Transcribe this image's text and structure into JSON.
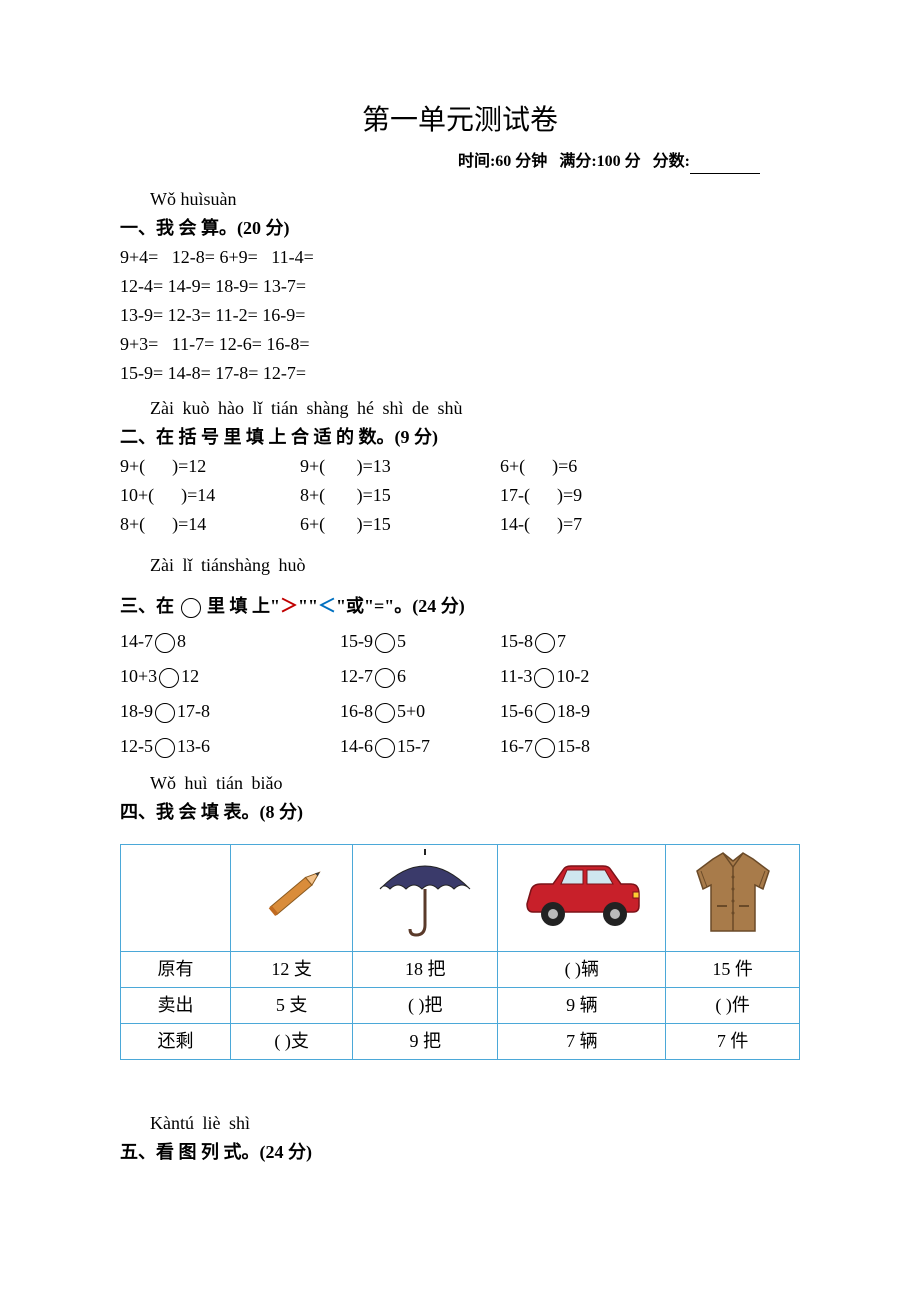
{
  "title": "第一单元测试卷",
  "meta": {
    "time_label": "时间:60 分钟",
    "full_label": "满分:100 分",
    "score_label": "分数:"
  },
  "s1": {
    "pinyin": "Wǒ huìsuàn",
    "heading": "一、我 会 算。(20 分)",
    "rows": [
      "9+4=   12-8= 6+9=   11-4=",
      "12-4= 14-9= 18-9= 13-7=",
      "13-9= 12-3= 11-2= 16-9=",
      "9+3=   11-7= 12-6= 16-8=",
      "15-9= 14-8= 17-8= 12-7="
    ]
  },
  "s2": {
    "pinyin": "Zài  kuò  hào lǐ tián shàng hé shì de  shù",
    "heading": "二、在  括  号 里  填  上   合 适  的   数。(9 分)",
    "rows": [
      [
        "9+(      )=12",
        "9+(       )=13",
        "6+(      )=6"
      ],
      [
        "10+(      )=14",
        "8+(       )=15",
        "17-(      )=9"
      ],
      [
        "8+(      )=14",
        "6+(       )=15",
        "14-(      )=7"
      ]
    ]
  },
  "s3": {
    "pinyin": "Zài lǐ tiánshàng    huò",
    "heading_pre": "三、在",
    "heading_mid1": "里 填 上\"",
    "gt": "＞",
    "heading_mid2": "\"\"",
    "lt": "＜",
    "heading_post": "\"或\"=\"。(24 分)",
    "rows": [
      [
        [
          "14-7",
          "8"
        ],
        [
          "15-9",
          "5"
        ],
        [
          "15-8",
          "7"
        ]
      ],
      [
        [
          "10+3",
          "12"
        ],
        [
          "12-7",
          "6"
        ],
        [
          "11-3",
          "10-2"
        ]
      ],
      [
        [
          "18-9",
          "17-8"
        ],
        [
          "16-8",
          "5+0"
        ],
        [
          "15-6",
          "18-9"
        ]
      ],
      [
        [
          "12-5",
          "13-6"
        ],
        [
          "14-6",
          "15-7"
        ],
        [
          "16-7",
          "15-8"
        ]
      ]
    ]
  },
  "s4": {
    "pinyin": "Wǒ huì tián biǎo",
    "heading": "四、我 会 填   表。(8 分)",
    "row_labels": [
      "原有",
      "卖出",
      "还剩"
    ],
    "columns": [
      {
        "icon": "pencil",
        "cells": [
          "12 支",
          "5 支",
          "(     )支"
        ]
      },
      {
        "icon": "umbrella",
        "cells": [
          "18 把",
          "(     )把",
          "9 把"
        ]
      },
      {
        "icon": "car",
        "cells": [
          "(     )辆",
          "9 辆",
          "7 辆"
        ]
      },
      {
        "icon": "jacket",
        "cells": [
          "15 件",
          "(    )件",
          "7 件"
        ]
      }
    ],
    "colors": {
      "pencil_body": "#d98c3a",
      "pencil_tip": "#f2c088",
      "pencil_point": "#3a3a3a",
      "umbrella_fill": "#3a3a6a",
      "umbrella_handle": "#5a3a2a",
      "car_body": "#c8202a",
      "car_window": "#cfe6ef",
      "car_wheel": "#222",
      "car_hub": "#bbb",
      "jacket_fill": "#a87b4a",
      "jacket_line": "#6a4a28",
      "table_border": "#4ba8d8"
    }
  },
  "s5": {
    "pinyin": "Kàntú liè shì",
    "heading": "五、看 图 列 式。(24 分)"
  }
}
